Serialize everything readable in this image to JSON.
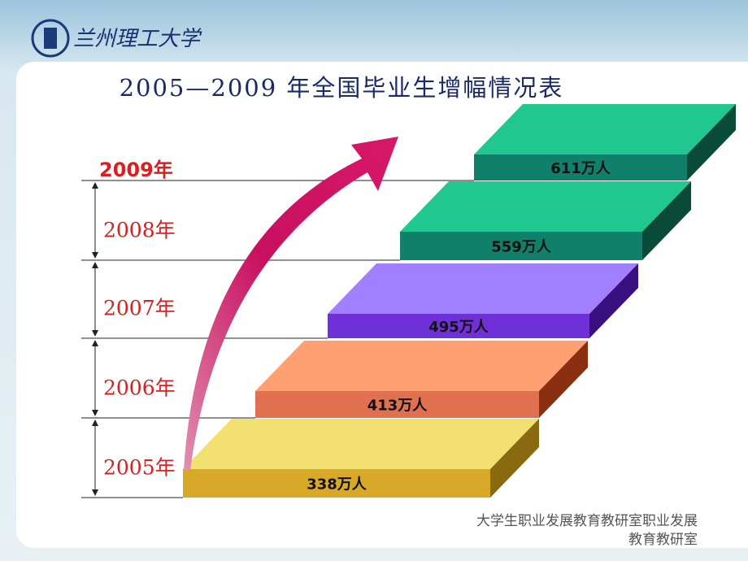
{
  "header": {
    "logo_text": "兰州理工大学",
    "title": "2005—2009 年全国毕业生增幅情况表"
  },
  "steps": [
    {
      "year": "2005年",
      "label": "338万人"
    },
    {
      "year": "2006年",
      "label": "413万人"
    },
    {
      "year": "2007年",
      "label": "495万人"
    },
    {
      "year": "2008年",
      "label": "559万人"
    },
    {
      "year": "2009年",
      "label": "611万人"
    }
  ],
  "footer": "大学生职业发展教育教研室职业发展教育教研室"
}
